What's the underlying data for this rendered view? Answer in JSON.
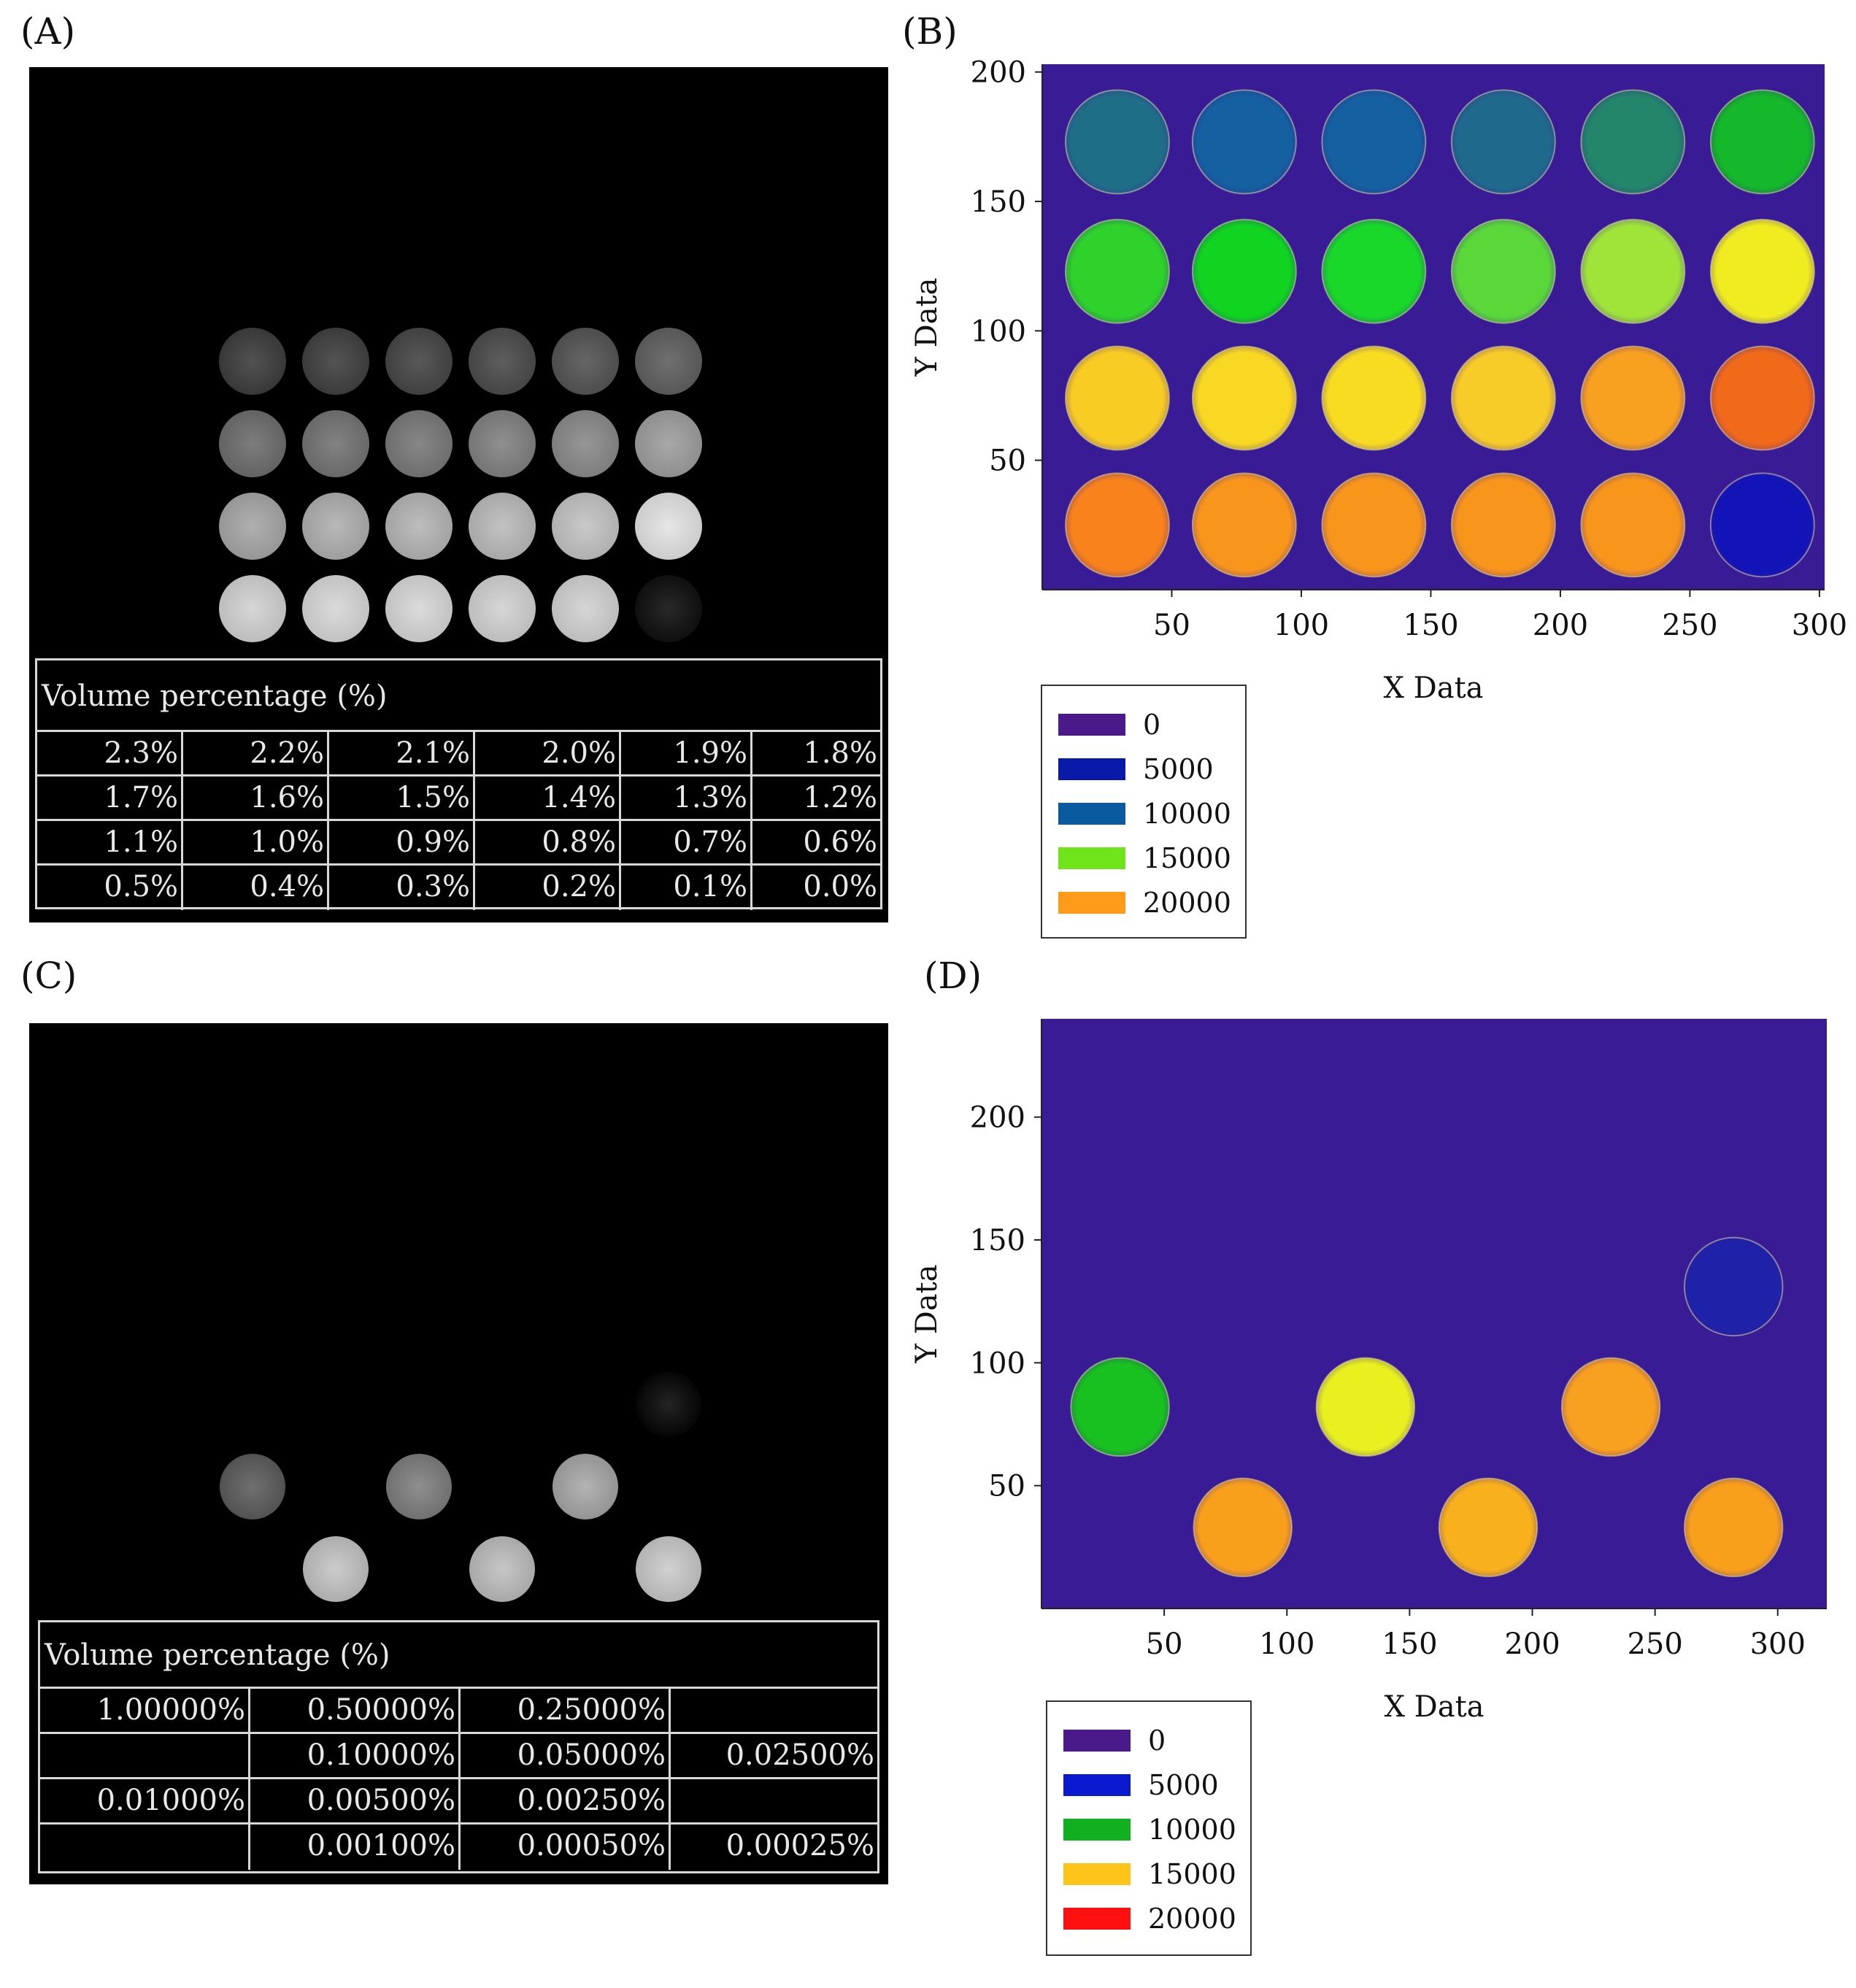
{
  "panels": {
    "A": {
      "label": "(A)",
      "table_title": "Volume percentage (%)",
      "rows": [
        [
          "2.3%",
          "2.2%",
          "2.1%",
          "2.0%",
          "1.9%",
          "1.8%"
        ],
        [
          "1.7%",
          "1.6%",
          "1.5%",
          "1.4%",
          "1.3%",
          "1.2%"
        ],
        [
          "1.1%",
          "1.0%",
          "0.9%",
          "0.8%",
          "0.7%",
          "0.6%"
        ],
        [
          "0.5%",
          "0.4%",
          "0.3%",
          "0.2%",
          "0.1%",
          "0.0%"
        ]
      ],
      "well_gray_levels": [
        [
          0.28,
          0.29,
          0.31,
          0.33,
          0.36,
          0.4
        ],
        [
          0.45,
          0.47,
          0.49,
          0.52,
          0.55,
          0.62
        ],
        [
          0.65,
          0.68,
          0.7,
          0.72,
          0.75,
          0.86
        ],
        [
          0.8,
          0.82,
          0.82,
          0.8,
          0.8,
          0.12
        ]
      ]
    },
    "B": {
      "label": "(B)"
    },
    "C": {
      "label": "(C)",
      "table_title": "Volume percentage (%)",
      "rows": [
        [
          "1.00000%",
          "0.50000%",
          "0.25000%",
          ""
        ],
        [
          "",
          "0.10000%",
          "0.05000%",
          "0.02500%"
        ],
        [
          "0.01000%",
          "0.00500%",
          "0.00250%",
          ""
        ],
        [
          "",
          "0.00100%",
          "0.00050%",
          "0.00025%"
        ]
      ],
      "wells": [
        {
          "row": 0,
          "col": 5,
          "gray": 0.1
        },
        {
          "row": 1,
          "col": 0,
          "gray": 0.4
        },
        {
          "row": 1,
          "col": 2,
          "gray": 0.52
        },
        {
          "row": 1,
          "col": 4,
          "gray": 0.66
        },
        {
          "row": 2,
          "col": 1,
          "gray": 0.76
        },
        {
          "row": 2,
          "col": 3,
          "gray": 0.74
        },
        {
          "row": 2,
          "col": 5,
          "gray": 0.78
        }
      ]
    },
    "D": {
      "label": "(D)"
    }
  },
  "chart_data": [
    {
      "panel": "B",
      "type": "heatmap",
      "xlabel": "X Data",
      "ylabel": "Y Data",
      "xlim": [
        0,
        302
      ],
      "ylim": [
        0,
        203
      ],
      "xticks": [
        50,
        100,
        150,
        200,
        250,
        300
      ],
      "yticks": [
        50,
        100,
        150,
        200
      ],
      "background_color": "#3a1b96",
      "legend": [
        {
          "label": "0",
          "color": "#4a1a8a"
        },
        {
          "label": "5000",
          "color": "#0a1aa8"
        },
        {
          "label": "10000",
          "color": "#0a5aa0"
        },
        {
          "label": "15000",
          "color": "#6fe41a"
        },
        {
          "label": "20000",
          "color": "#ff9a1a"
        }
      ],
      "wells": [
        {
          "x": 29,
          "y": 173,
          "color": "#1f6e88"
        },
        {
          "x": 78,
          "y": 173,
          "color": "#1560a0"
        },
        {
          "x": 128,
          "y": 173,
          "color": "#1560a0"
        },
        {
          "x": 178,
          "y": 173,
          "color": "#1f6a8c"
        },
        {
          "x": 228,
          "y": 173,
          "color": "#23856a"
        },
        {
          "x": 278,
          "y": 173,
          "color": "#14b82a"
        },
        {
          "x": 29,
          "y": 123,
          "color": "#2ed22a"
        },
        {
          "x": 78,
          "y": 123,
          "color": "#10d420"
        },
        {
          "x": 128,
          "y": 123,
          "color": "#1ad82a"
        },
        {
          "x": 178,
          "y": 123,
          "color": "#5ad83a"
        },
        {
          "x": 228,
          "y": 123,
          "color": "#a0e43a"
        },
        {
          "x": 278,
          "y": 123,
          "color": "#f0ec20"
        },
        {
          "x": 29,
          "y": 74,
          "color": "#f8cc22"
        },
        {
          "x": 78,
          "y": 74,
          "color": "#f8d822"
        },
        {
          "x": 128,
          "y": 74,
          "color": "#f8dc22"
        },
        {
          "x": 178,
          "y": 74,
          "color": "#f8cc28"
        },
        {
          "x": 228,
          "y": 74,
          "color": "#f8a020"
        },
        {
          "x": 278,
          "y": 74,
          "color": "#f06a1a"
        },
        {
          "x": 29,
          "y": 25,
          "color": "#f8821c"
        },
        {
          "x": 78,
          "y": 25,
          "color": "#f8961c"
        },
        {
          "x": 128,
          "y": 25,
          "color": "#f8961c"
        },
        {
          "x": 178,
          "y": 25,
          "color": "#f8961c"
        },
        {
          "x": 228,
          "y": 25,
          "color": "#f8961c"
        },
        {
          "x": 278,
          "y": 25,
          "color": "#1214b8"
        }
      ]
    },
    {
      "panel": "D",
      "type": "heatmap",
      "xlabel": "X Data",
      "ylabel": "Y Data",
      "xlim": [
        0,
        320
      ],
      "ylim": [
        0,
        240
      ],
      "xticks": [
        50,
        100,
        150,
        200,
        250,
        300
      ],
      "yticks": [
        50,
        100,
        150,
        200
      ],
      "background_color": "#3a1b96",
      "legend": [
        {
          "label": "0",
          "color": "#4a1a8a"
        },
        {
          "label": "5000",
          "color": "#0a1ad0"
        },
        {
          "label": "10000",
          "color": "#10b020"
        },
        {
          "label": "15000",
          "color": "#ffc41a"
        },
        {
          "label": "20000",
          "color": "#ff1010"
        }
      ],
      "wells": [
        {
          "x": 32,
          "y": 82,
          "color": "#18c020"
        },
        {
          "x": 132,
          "y": 82,
          "color": "#e8f020"
        },
        {
          "x": 232,
          "y": 82,
          "color": "#f8a020"
        },
        {
          "x": 282,
          "y": 131,
          "color": "#1e22a8"
        },
        {
          "x": 82,
          "y": 33,
          "color": "#f8a01c"
        },
        {
          "x": 182,
          "y": 33,
          "color": "#f8b01c"
        },
        {
          "x": 282,
          "y": 33,
          "color": "#f8a01c"
        }
      ]
    }
  ]
}
